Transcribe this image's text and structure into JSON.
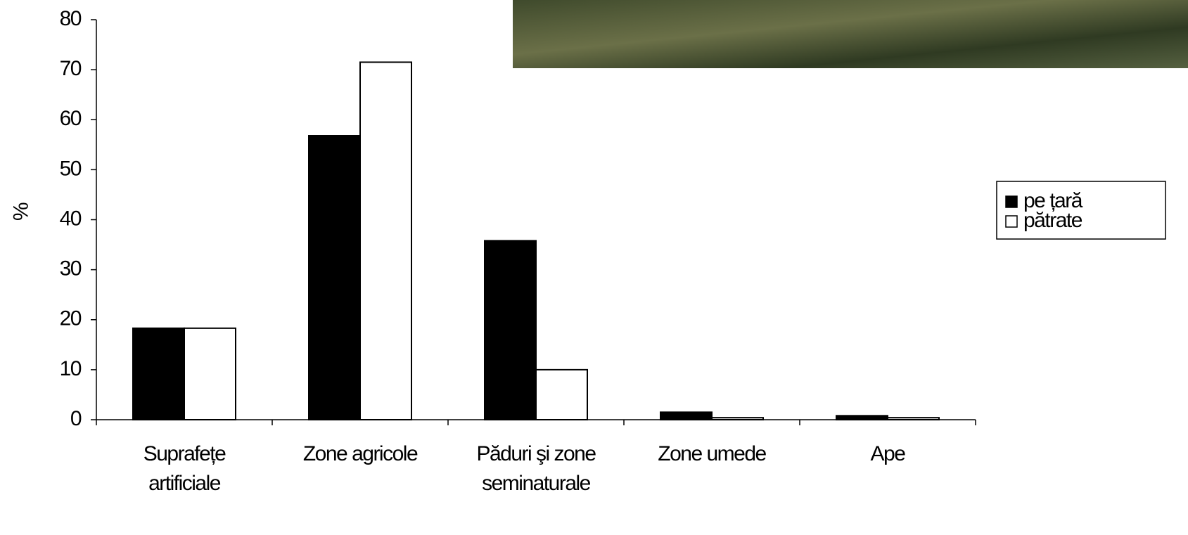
{
  "chart_data": {
    "type": "bar",
    "y_label": "%",
    "categories": [
      "Suprafețe\nartificiale",
      "Zone agricole",
      "Păduri şi zone\nseminaturale",
      "Zone umede",
      "Ape"
    ],
    "series": [
      {
        "name": "pe țară",
        "color": "#000000",
        "values": [
          18.3,
          56.8,
          35.8,
          1.5,
          0.8
        ]
      },
      {
        "name": "pătrate",
        "color": "#ffffff",
        "values": [
          18.3,
          71.5,
          10,
          0.4,
          0.4
        ]
      }
    ],
    "ylim": [
      0,
      80
    ],
    "yticks": [
      0,
      10,
      20,
      30,
      40,
      50,
      60,
      70,
      80
    ]
  }
}
